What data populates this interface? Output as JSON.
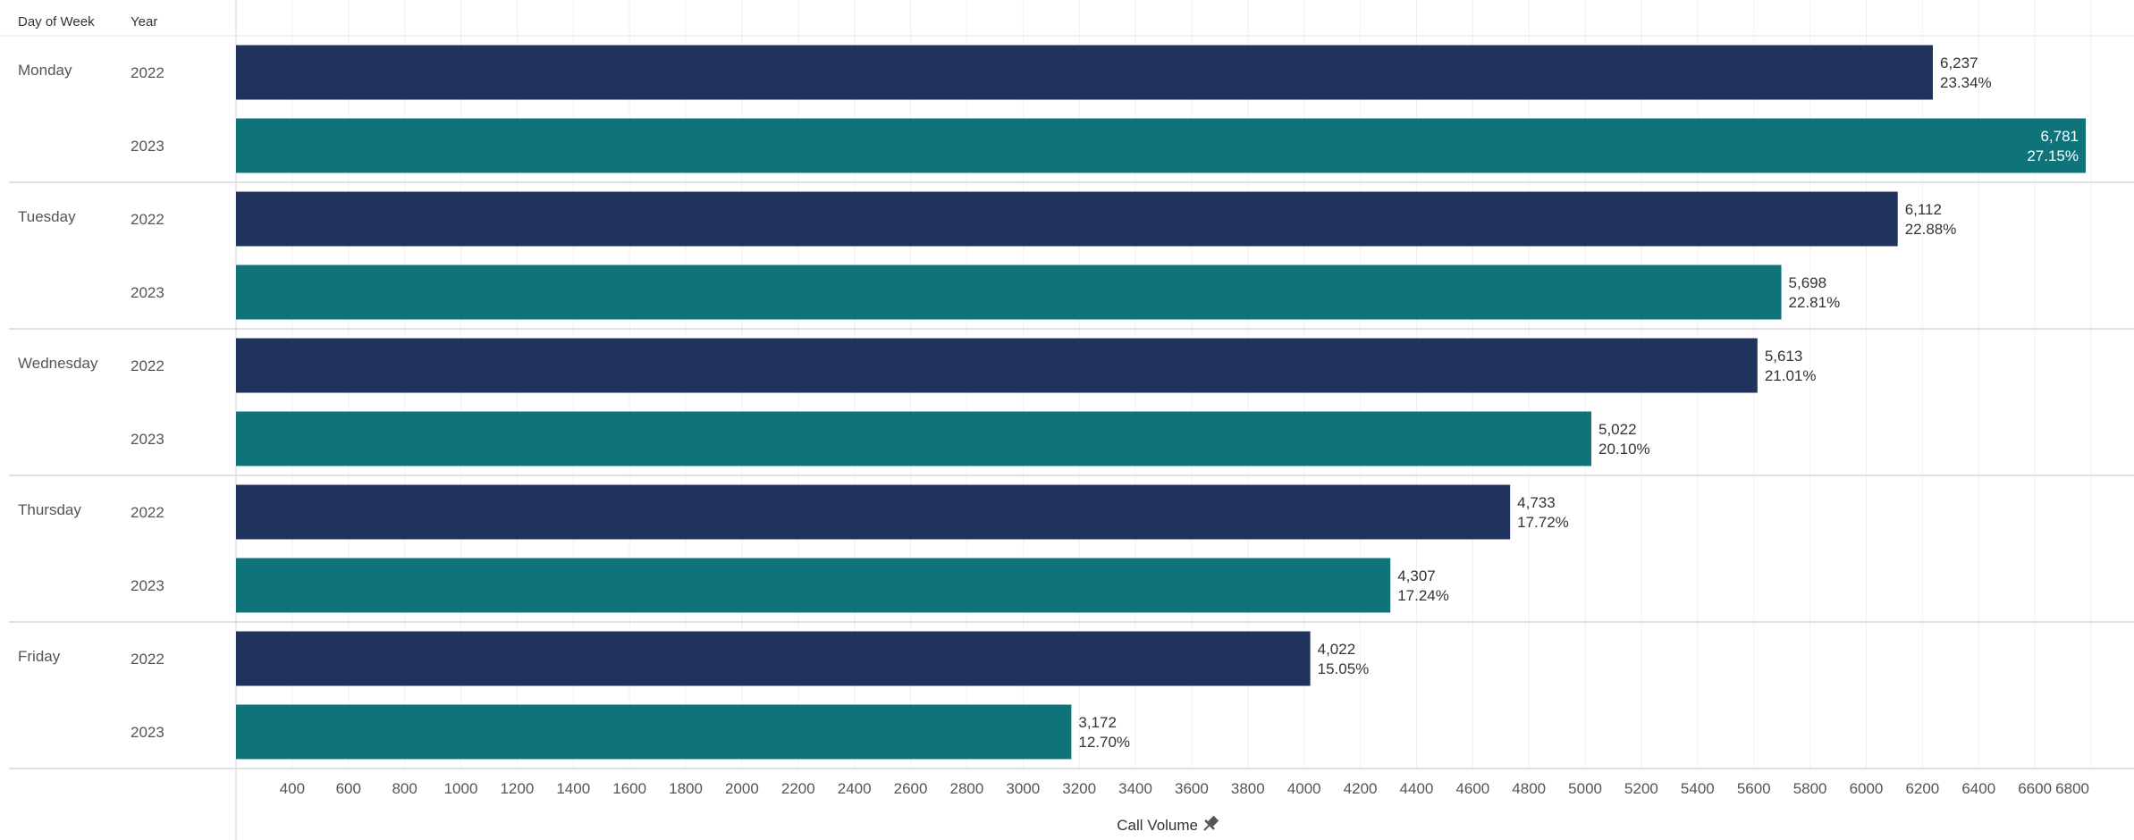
{
  "chart_data": {
    "type": "bar",
    "orientation": "horizontal",
    "row_headers": [
      "Day of Week",
      "Year"
    ],
    "groups": [
      {
        "day": "Monday",
        "rows": [
          {
            "year": "2022",
            "value": 6237,
            "label": "6,237",
            "pct": "23.34%"
          },
          {
            "year": "2023",
            "value": 6781,
            "label": "6,781",
            "pct": "27.15%"
          }
        ]
      },
      {
        "day": "Tuesday",
        "rows": [
          {
            "year": "2022",
            "value": 6112,
            "label": "6,112",
            "pct": "22.88%"
          },
          {
            "year": "2023",
            "value": 5698,
            "label": "5,698",
            "pct": "22.81%"
          }
        ]
      },
      {
        "day": "Wednesday",
        "rows": [
          {
            "year": "2022",
            "value": 5613,
            "label": "5,613",
            "pct": "21.01%"
          },
          {
            "year": "2023",
            "value": 5022,
            "label": "5,022",
            "pct": "20.10%"
          }
        ]
      },
      {
        "day": "Thursday",
        "rows": [
          {
            "year": "2022",
            "value": 4733,
            "label": "4,733",
            "pct": "17.72%"
          },
          {
            "year": "2023",
            "value": 4307,
            "label": "4,307",
            "pct": "17.24%"
          }
        ]
      },
      {
        "day": "Friday",
        "rows": [
          {
            "year": "2022",
            "value": 4022,
            "label": "4,022",
            "pct": "15.05%"
          },
          {
            "year": "2023",
            "value": 3172,
            "label": "3,172",
            "pct": "12.70%"
          }
        ]
      }
    ],
    "xlabel": "Call Volume",
    "xlabel_icon": "pin-icon",
    "xlim": [
      200,
      6800
    ],
    "xticks": [
      400,
      600,
      800,
      1000,
      1200,
      1400,
      1600,
      1800,
      2000,
      2200,
      2400,
      2600,
      2800,
      3000,
      3200,
      3400,
      3600,
      3800,
      4000,
      4200,
      4400,
      4600,
      4800,
      5000,
      5200,
      5400,
      5600,
      5800,
      6000,
      6200,
      6400,
      6600,
      6800
    ],
    "grid": "vertical",
    "colors": {
      "2022": "#1f335c",
      "2023": "#0e7479"
    }
  }
}
